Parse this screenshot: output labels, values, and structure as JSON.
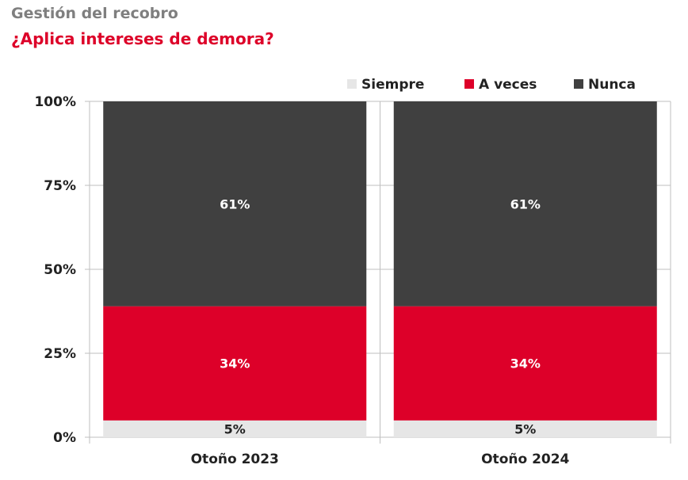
{
  "header": {
    "title": "Gestión del recobro",
    "subtitle": "¿Aplica intereses de demora?"
  },
  "chart_data": {
    "type": "bar",
    "stacked": true,
    "categories": [
      "Otoño 2023",
      "Otoño 2024"
    ],
    "series": [
      {
        "name": "Siempre",
        "values": [
          5,
          5
        ],
        "color": "#e6e6e6",
        "label_color": "#222222"
      },
      {
        "name": "A veces",
        "values": [
          34,
          34
        ],
        "color": "#dd0029",
        "label_color": "#ffffff"
      },
      {
        "name": "Nunca",
        "values": [
          61,
          61
        ],
        "color": "#404040",
        "label_color": "#ffffff"
      }
    ],
    "value_suffix": "%",
    "ylim": [
      0,
      100
    ],
    "yticks": [
      "0%",
      "25%",
      "50%",
      "75%",
      "100%"
    ],
    "gridlines": true,
    "legend_position": "top-right"
  }
}
